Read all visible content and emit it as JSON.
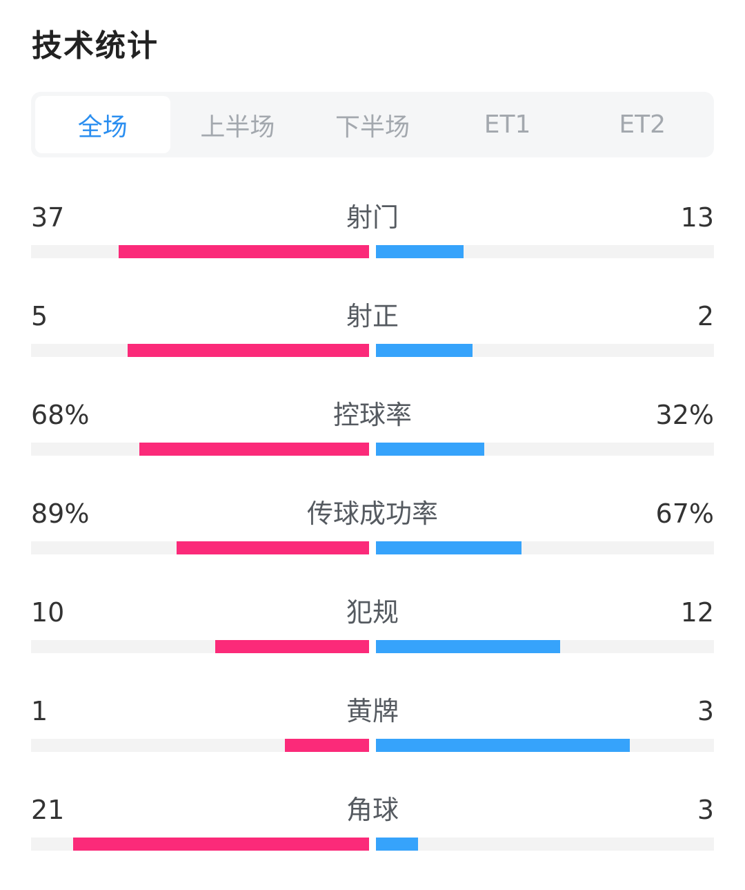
{
  "title": "技术统计",
  "tabs": [
    {
      "label": "全场",
      "active": true
    },
    {
      "label": "上半场",
      "active": false
    },
    {
      "label": "下半场",
      "active": false
    },
    {
      "label": "ET1",
      "active": false
    },
    {
      "label": "ET2",
      "active": false
    }
  ],
  "colors": {
    "home": "#fb2a79",
    "away": "#36a3fb",
    "active_tab": "#2a8ef0"
  },
  "stats": [
    {
      "name": "射门",
      "left": "37",
      "right": "13",
      "left_fill": 0.74,
      "right_fill": 0.26
    },
    {
      "name": "射正",
      "left": "5",
      "right": "2",
      "left_fill": 0.714,
      "right_fill": 0.286
    },
    {
      "name": "控球率",
      "left": "68%",
      "right": "32%",
      "left_fill": 0.68,
      "right_fill": 0.32
    },
    {
      "name": "传球成功率",
      "left": "89%",
      "right": "67%",
      "left_fill": 0.57,
      "right_fill": 0.43
    },
    {
      "name": "犯规",
      "left": "10",
      "right": "12",
      "left_fill": 0.455,
      "right_fill": 0.545
    },
    {
      "name": "黄牌",
      "left": "1",
      "right": "3",
      "left_fill": 0.25,
      "right_fill": 0.75
    },
    {
      "name": "角球",
      "left": "21",
      "right": "3",
      "left_fill": 0.875,
      "right_fill": 0.125
    }
  ]
}
